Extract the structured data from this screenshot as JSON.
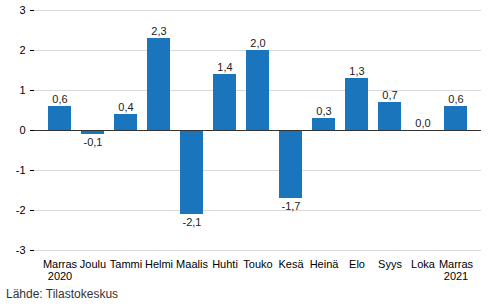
{
  "chart_data": {
    "type": "bar",
    "categories": [
      "Marras\n2020",
      "Joulu",
      "Tammi",
      "Helmi",
      "Maalis",
      "Huhti",
      "Touko",
      "Kesä",
      "Heinä",
      "Elo",
      "Syys",
      "Loka",
      "Marras\n2021"
    ],
    "values": [
      0.6,
      -0.1,
      0.4,
      2.3,
      -2.1,
      1.4,
      2.0,
      -1.7,
      0.3,
      1.3,
      0.7,
      0.0,
      0.6
    ],
    "value_labels": [
      "0,6",
      "-0,1",
      "0,4",
      "2,3",
      "-2,1",
      "1,4",
      "2,0",
      "-1,7",
      "0,3",
      "1,3",
      "0,7",
      "0,0",
      "0,6"
    ],
    "color": "#1a75bc",
    "ylim": [
      -3,
      3
    ],
    "yticks": [
      -3,
      -2,
      -1,
      0,
      1,
      2,
      3
    ],
    "grid": true,
    "data_labels": true,
    "caption": "Lähde: Tilastokeskus"
  }
}
